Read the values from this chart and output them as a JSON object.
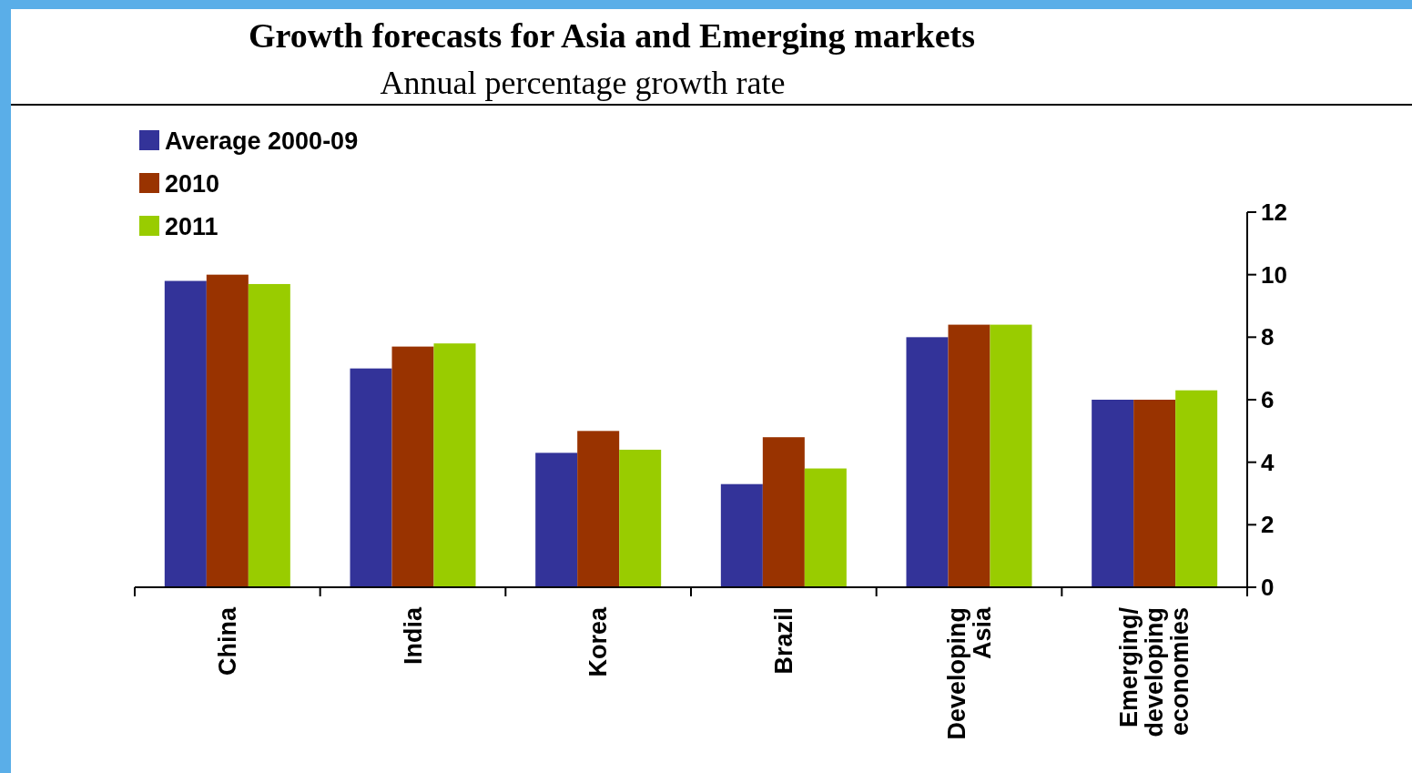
{
  "chart_data": {
    "type": "bar",
    "title": "Growth forecasts for Asia and Emerging markets",
    "subtitle": "Annual percentage growth rate",
    "categories": [
      "China",
      "India",
      "Korea",
      "Brazil",
      "Developing\nAsia",
      "Emerging/\ndeveloping\neconomies"
    ],
    "series": [
      {
        "name": "Average 2000-09",
        "color": "#333399",
        "values": [
          9.8,
          7.0,
          4.3,
          3.3,
          8.0,
          6.0
        ]
      },
      {
        "name": "2010",
        "color": "#993300",
        "values": [
          10.0,
          7.7,
          5.0,
          4.8,
          8.4,
          6.0
        ]
      },
      {
        "name": "2011",
        "color": "#99cc00",
        "values": [
          9.7,
          7.8,
          4.4,
          3.8,
          8.4,
          6.3
        ]
      }
    ],
    "ylim": [
      0,
      12
    ],
    "yticks": [
      0,
      2,
      4,
      6,
      8,
      10,
      12
    ],
    "grid": false,
    "legend": "top left"
  }
}
